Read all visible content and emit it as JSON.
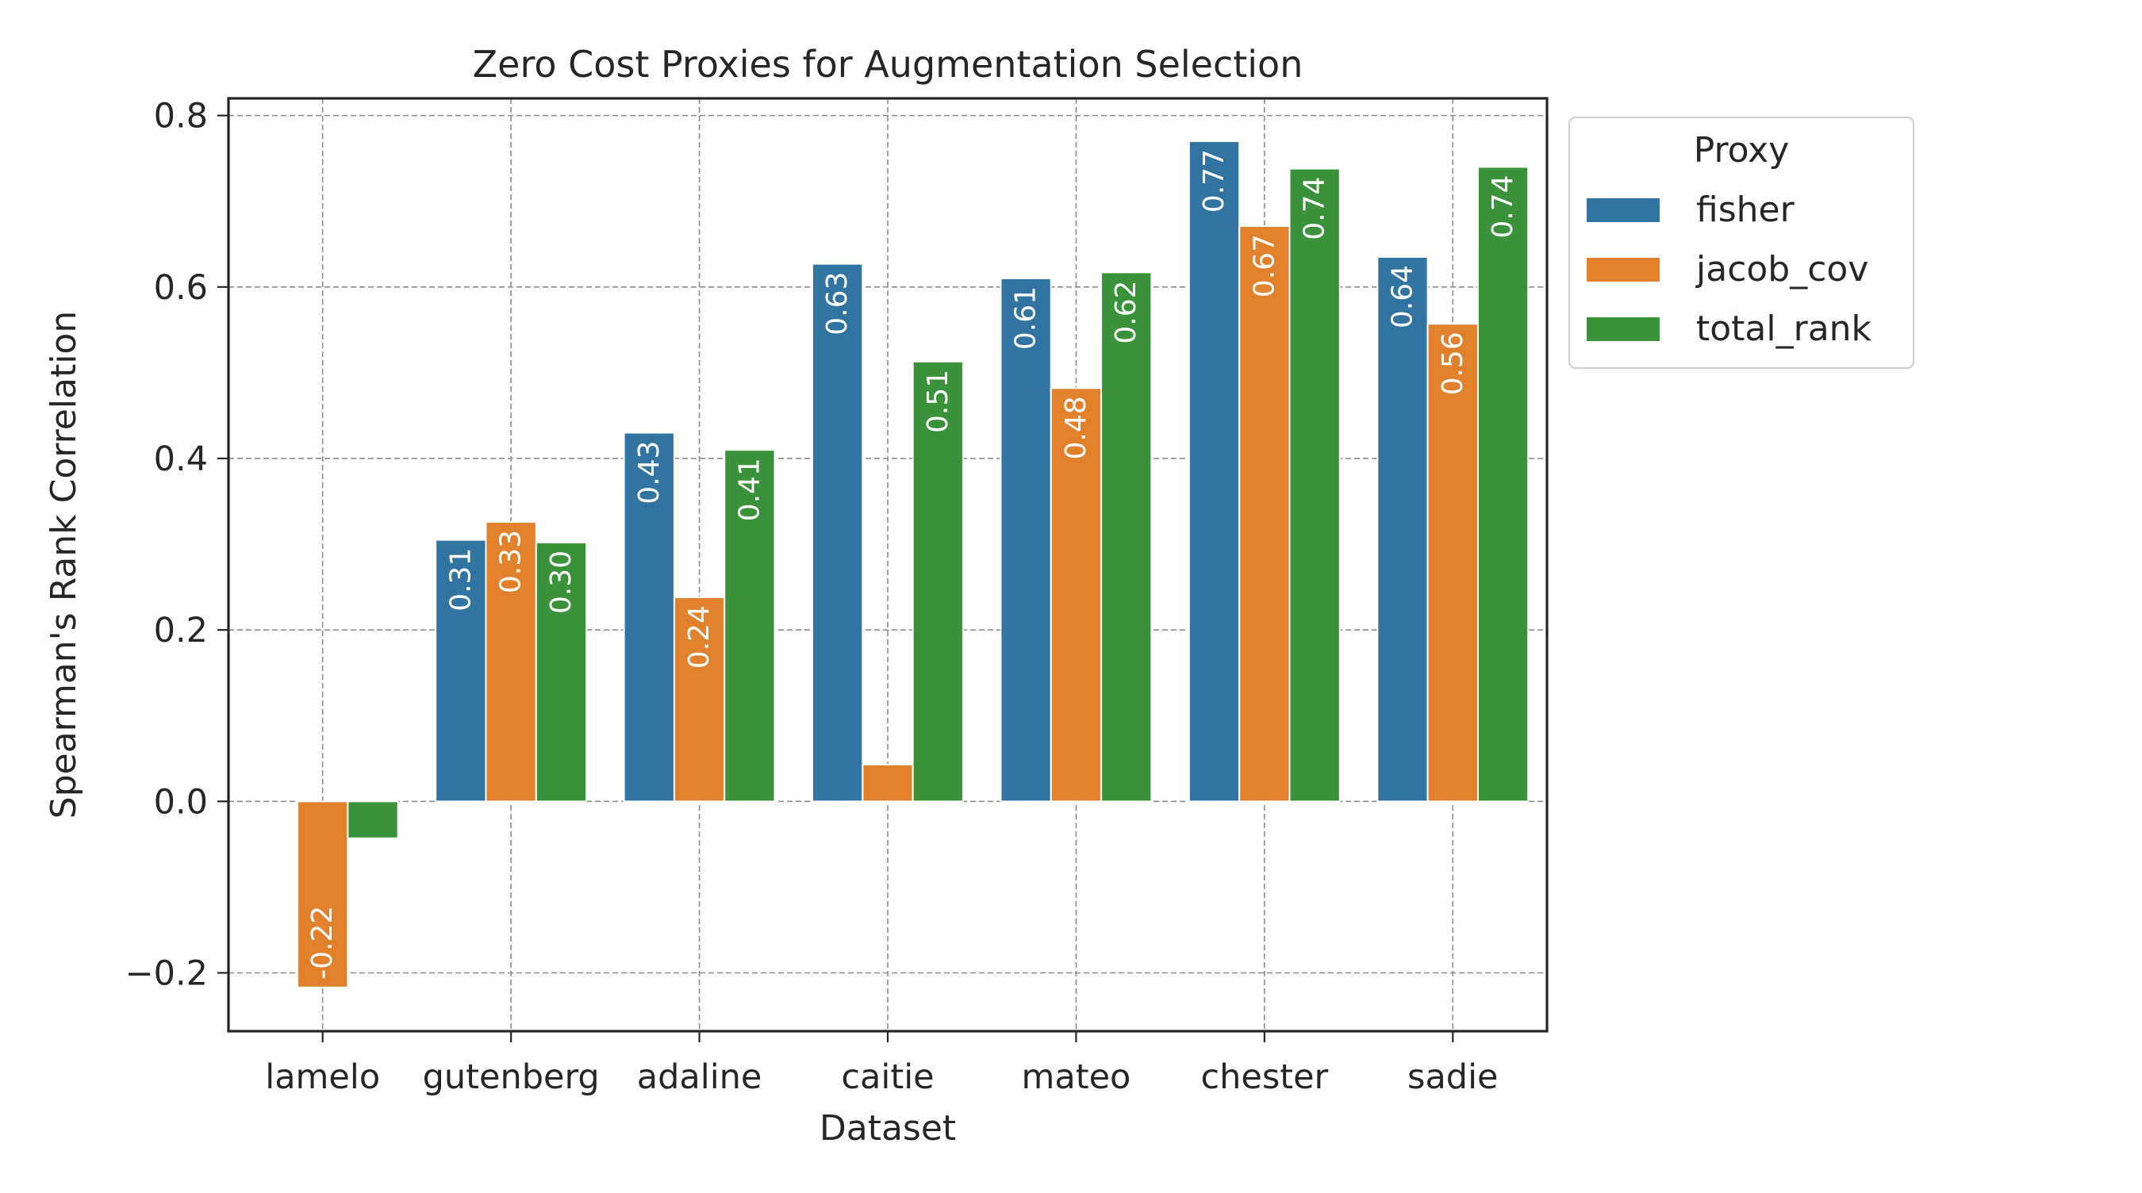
{
  "chart_data": {
    "type": "bar",
    "title": "Zero Cost Proxies for Augmentation Selection",
    "xlabel": "Dataset",
    "ylabel": "Spearman's Rank Correlation",
    "ylim": [
      -0.268,
      0.82
    ],
    "yticks": [
      -0.2,
      0.0,
      0.2,
      0.4,
      0.6,
      0.8
    ],
    "ytick_labels": [
      "−0.2",
      "0.0",
      "0.2",
      "0.4",
      "0.6",
      "0.8"
    ],
    "grid": true,
    "categories": [
      "lamelo",
      "gutenberg",
      "adaline",
      "caitie",
      "mateo",
      "chester",
      "sadie"
    ],
    "legend": {
      "title": "Proxy",
      "placement": "outside-upper-right"
    },
    "series": [
      {
        "name": "fisher",
        "color": "#3274a1",
        "values": [
          null,
          0.305,
          0.43,
          0.627,
          0.61,
          0.77,
          0.635
        ],
        "labels": [
          "",
          "0.31",
          "0.43",
          "0.63",
          "0.61",
          "0.77",
          "0.64"
        ]
      },
      {
        "name": "jacob_cov",
        "color": "#e1812c",
        "values": [
          -0.217,
          0.326,
          0.238,
          0.043,
          0.482,
          0.671,
          0.557
        ],
        "labels": [
          "-0.22",
          "0.33",
          "0.24",
          "",
          "0.48",
          "0.67",
          "0.56"
        ]
      },
      {
        "name": "total_rank",
        "color": "#3a923a",
        "values": [
          -0.043,
          0.302,
          0.41,
          0.513,
          0.617,
          0.738,
          0.74
        ],
        "labels": [
          "",
          "0.30",
          "0.41",
          "0.51",
          "0.62",
          "0.74",
          "0.74"
        ]
      }
    ]
  }
}
